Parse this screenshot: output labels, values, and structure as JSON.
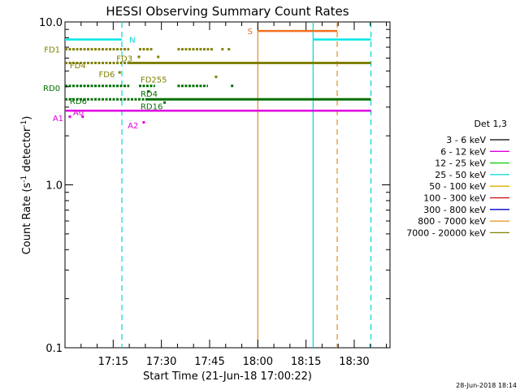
{
  "chart_data": {
    "type": "line",
    "title": "HESSI Observing Summary Count Rates",
    "xlabel": "Start Time (21-Jun-18 17:00:22)",
    "ylabel": "Count Rate (s",
    "ylabel_sup1": "-1",
    "ylabel_mid": " detector",
    "ylabel_sup2": "-1",
    "ylabel_end": ")",
    "y_scale": "log",
    "ylim": [
      0.1,
      10.0
    ],
    "xlim": [
      "17:00:22",
      "18:41:30"
    ],
    "x_ticks": [
      {
        "t": "17:15",
        "m": 15
      },
      {
        "t": "17:30",
        "m": 30
      },
      {
        "t": "17:45",
        "m": 45
      },
      {
        "t": "18:00",
        "m": 60
      },
      {
        "t": "18:15",
        "m": 75
      },
      {
        "t": "18:30",
        "m": 90
      }
    ],
    "y_ticks": [
      {
        "t": "10.0",
        "v": 10.0
      },
      {
        "t": "1.0",
        "v": 1.0
      },
      {
        "t": "0.1",
        "v": 0.1
      }
    ],
    "series": [
      {
        "name": "3 - 6 keV",
        "color": "#000000"
      },
      {
        "name": "6 - 12 keV",
        "color": "#e000e0"
      },
      {
        "name": "12 - 25 keV",
        "color": "#00d000"
      },
      {
        "name": "25 - 50 keV",
        "color": "#00d8d8"
      },
      {
        "name": "50 - 100 keV",
        "color": "#d8b000"
      },
      {
        "name": "100 - 300 keV",
        "color": "#d00000"
      },
      {
        "name": "300 - 800 keV",
        "color": "#0000d0"
      },
      {
        "name": "800 - 7000 keV",
        "color": "#e09020"
      },
      {
        "name": "7000 - 20000 keV",
        "color": "#808000"
      }
    ],
    "legend_title": "Det 1,3",
    "legend_position": "right",
    "vertical_lines": [
      {
        "m": 17.7,
        "color": "#00d8d8",
        "style": "dashed"
      },
      {
        "m": 60.0,
        "color": "#e09020",
        "style": "solid"
      },
      {
        "m": 77.2,
        "color": "#00d8d8",
        "style": "solid"
      },
      {
        "m": 84.7,
        "color": "#e09020",
        "style": "dashed"
      },
      {
        "m": 95.2,
        "color": "#00d8d8",
        "style": "dashed"
      }
    ],
    "segments": [
      {
        "name": "N",
        "color": "#00e8e8",
        "y": 7.8,
        "x1": 0.0,
        "x2": 17.7,
        "width": 2.5
      },
      {
        "name": "N-after",
        "color": "#00e8e8",
        "y": 7.8,
        "x1": 77.2,
        "x2": 95.2,
        "width": 2.5
      },
      {
        "name": "S",
        "color": "#f07020",
        "y": 8.8,
        "x1": 60.0,
        "x2": 84.7,
        "width": 2.5
      },
      {
        "name": "FD4-line",
        "color": "#808000",
        "y": 5.6,
        "x1": 20.0,
        "x2": 95.2,
        "width": 3
      },
      {
        "name": "RD6-line",
        "color": "#007000",
        "y": 3.35,
        "x1": 25.0,
        "x2": 95.2,
        "width": 3
      },
      {
        "name": "A0-line",
        "color": "#e000e0",
        "y": 2.85,
        "x1": 0.0,
        "x2": 95.2,
        "width": 2.5
      }
    ],
    "dotted_runs": [
      {
        "color": "#808000",
        "y": 6.8,
        "x1": 0.0,
        "x2": 20.0
      },
      {
        "color": "#808000",
        "y": 6.8,
        "x1": 23.0,
        "x2": 27.5
      },
      {
        "color": "#808000",
        "y": 6.8,
        "x1": 35.0,
        "x2": 46.0
      },
      {
        "color": "#808000",
        "y": 5.6,
        "x1": 0.0,
        "x2": 20.0
      },
      {
        "color": "#007000",
        "y": 4.05,
        "x1": 0.0,
        "x2": 20.0
      },
      {
        "color": "#007000",
        "y": 4.05,
        "x1": 23.0,
        "x2": 28.0
      },
      {
        "color": "#007000",
        "y": 4.05,
        "x1": 35.0,
        "x2": 44.5
      },
      {
        "color": "#007000",
        "y": 3.35,
        "x1": 0.0,
        "x2": 25.0
      }
    ],
    "dots": [
      {
        "color": "#808000",
        "y": 6.8,
        "m": 49
      },
      {
        "color": "#808000",
        "y": 6.8,
        "m": 51
      },
      {
        "color": "#808000",
        "y": 6.1,
        "m": 23
      },
      {
        "color": "#808000",
        "y": 6.1,
        "m": 29
      },
      {
        "color": "#808000",
        "y": 5.6,
        "m": 20
      },
      {
        "color": "#808000",
        "y": 5.6,
        "m": 22
      },
      {
        "color": "#808000",
        "y": 4.9,
        "m": 17
      },
      {
        "color": "#808000",
        "y": 4.6,
        "m": 47
      },
      {
        "color": "#007000",
        "y": 4.05,
        "m": 52
      },
      {
        "color": "#007000",
        "y": 3.75,
        "m": 26
      },
      {
        "color": "#007000",
        "y": 3.2,
        "m": 31
      },
      {
        "color": "#e000e0",
        "y": 2.62,
        "m": 1.5
      },
      {
        "color": "#e000e0",
        "y": 2.62,
        "m": 5.5
      },
      {
        "color": "#e000e0",
        "y": 2.42,
        "m": 24.5
      }
    ],
    "annotations": [
      {
        "text": "N",
        "color": "#00d8d8",
        "m": 20.0,
        "y": 7.8,
        "anchor": "start"
      },
      {
        "text": "S",
        "color": "#e07020",
        "m": 58.4,
        "y": 8.8,
        "anchor": "end"
      },
      {
        "text": "FD1",
        "color": "#808000",
        "m": -1.5,
        "y": 6.8,
        "anchor": "end"
      },
      {
        "text": "FD3",
        "color": "#808000",
        "m": 16.0,
        "y": 6.0,
        "anchor": "start"
      },
      {
        "text": "FD4",
        "color": "#808000",
        "m": 1.5,
        "y": 5.45,
        "anchor": "start"
      },
      {
        "text": "FD6",
        "color": "#808000",
        "m": 10.5,
        "y": 4.8,
        "anchor": "start"
      },
      {
        "text": "FD255",
        "color": "#808000",
        "m": 23.5,
        "y": 4.45,
        "anchor": "start"
      },
      {
        "text": "RD0",
        "color": "#007000",
        "m": -1.5,
        "y": 3.95,
        "anchor": "end"
      },
      {
        "text": "RD4",
        "color": "#007000",
        "m": 23.5,
        "y": 3.65,
        "anchor": "start"
      },
      {
        "text": "RD6",
        "color": "#007000",
        "m": 1.5,
        "y": 3.28,
        "anchor": "start"
      },
      {
        "text": "RD16",
        "color": "#007000",
        "m": 23.5,
        "y": 3.05,
        "anchor": "start"
      },
      {
        "text": "A0",
        "color": "#e000e0",
        "m": 2.5,
        "y": 2.8,
        "anchor": "start"
      },
      {
        "text": "A1",
        "color": "#e000e0",
        "m": -0.5,
        "y": 2.58,
        "anchor": "end"
      },
      {
        "text": "A2",
        "color": "#e000e0",
        "m": 19.5,
        "y": 2.32,
        "anchor": "start"
      }
    ],
    "grid": false
  },
  "footer": {
    "timestamp": "28-Jun-2018 18:14"
  }
}
